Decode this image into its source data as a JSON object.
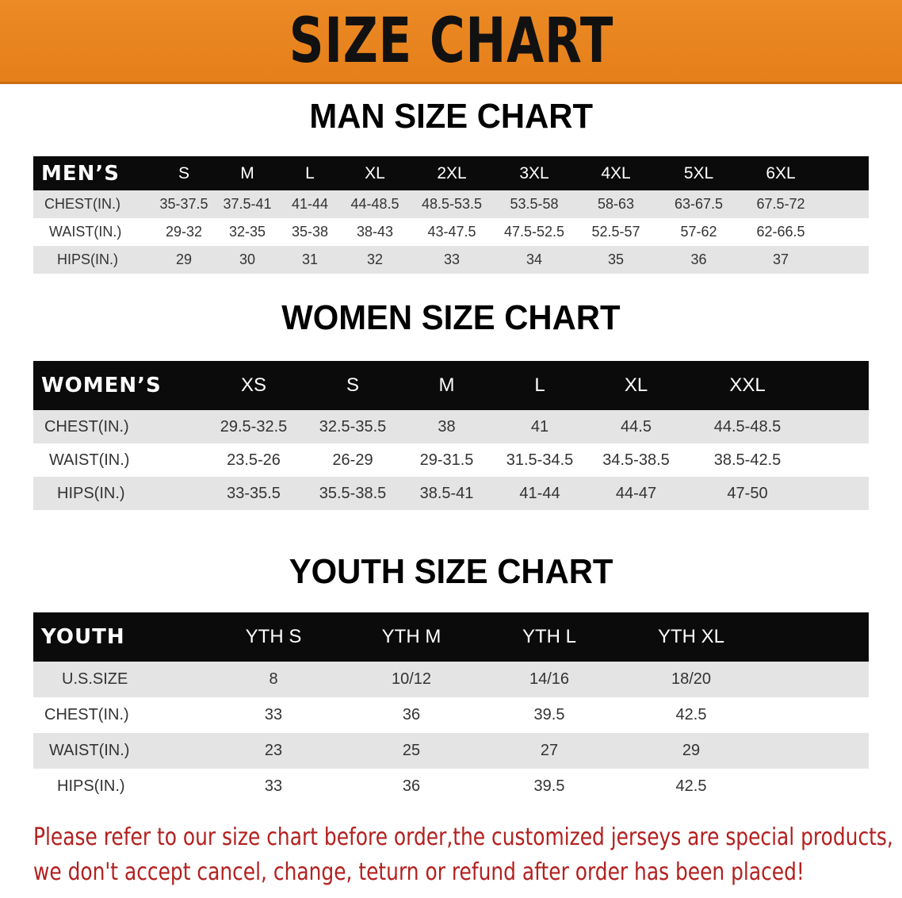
{
  "banner_title": "SIZE CHART",
  "colors": {
    "banner": "#e8821e",
    "header_row": "#0b0b0b",
    "note_text": "#b3201f"
  },
  "men": {
    "title": "MAN SIZE CHART",
    "header": [
      "MEN’S",
      "S",
      "M",
      "L",
      "XL",
      "2XL",
      "3XL",
      "4XL",
      "5XL",
      "6XL"
    ],
    "rows": [
      [
        "CHEST(IN.)",
        "35-37.5",
        "37.5-41",
        "41-44",
        "44-48.5",
        "48.5-53.5",
        "53.5-58",
        "58-63",
        "63-67.5",
        "67.5-72"
      ],
      [
        "WAIST(IN.)",
        "29-32",
        "32-35",
        "35-38",
        "38-43",
        "43-47.5",
        "47.5-52.5",
        "52.5-57",
        "57-62",
        "62-66.5"
      ],
      [
        "HIPS(IN.)",
        "29",
        "30",
        "31",
        "32",
        "33",
        "34",
        "35",
        "36",
        "37"
      ]
    ]
  },
  "women": {
    "title": "WOMEN SIZE CHART",
    "header": [
      "WOMEN’S",
      "XS",
      "S",
      "M",
      "L",
      "XL",
      "XXL"
    ],
    "rows": [
      [
        "CHEST(IN.)",
        "29.5-32.5",
        "32.5-35.5",
        "38",
        "41",
        "44.5",
        "44.5-48.5"
      ],
      [
        "WAIST(IN.)",
        "23.5-26",
        "26-29",
        "29-31.5",
        "31.5-34.5",
        "34.5-38.5",
        "38.5-42.5"
      ],
      [
        "HIPS(IN.)",
        "33-35.5",
        "35.5-38.5",
        "38.5-41",
        "41-44",
        "44-47",
        "47-50"
      ]
    ]
  },
  "youth": {
    "title": "YOUTH SIZE CHART",
    "header": [
      "YOUTH",
      "YTH S",
      "YTH M",
      "YTH L",
      "YTH XL"
    ],
    "rows": [
      [
        "U.S.SIZE",
        "8",
        "10/12",
        "14/16",
        "18/20"
      ],
      [
        "CHEST(IN.)",
        "33",
        "36",
        "39.5",
        "42.5"
      ],
      [
        "WAIST(IN.)",
        "23",
        "25",
        "27",
        "29"
      ],
      [
        "HIPS(IN.)",
        "33",
        "36",
        "39.5",
        "42.5"
      ]
    ]
  },
  "note": [
    "Please refer to our size chart before order,the customized jerseys are special products,",
    "we don't accept cancel, change, teturn or refund after order has been placed!"
  ]
}
